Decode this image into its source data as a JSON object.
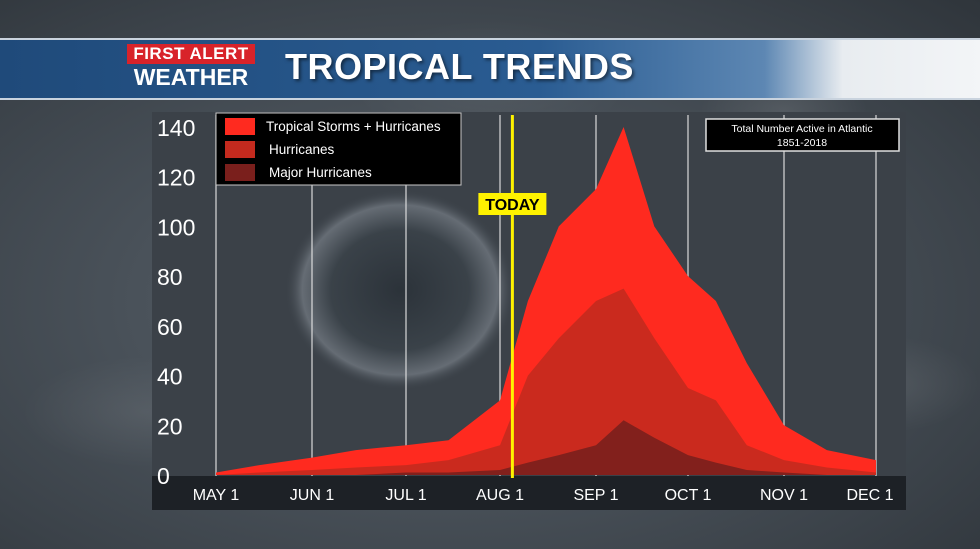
{
  "header": {
    "logo_line1": "FIRST ALERT",
    "logo_line2": "WEATHER",
    "title": "TROPICAL TRENDS"
  },
  "colors": {
    "tropical_storms": "#ff2a1f",
    "hurricanes": "#c42a1e",
    "major_hurricanes": "#7a1f1c",
    "today_line": "#fff200",
    "banner_blue": "#2a5c92",
    "logo_red": "#d8232a"
  },
  "chart_data": {
    "type": "area",
    "title": "Total Number Active in Atlantic",
    "subtitle": "1851-2018",
    "xlabel": "",
    "ylabel": "",
    "ylim": [
      0,
      140
    ],
    "yticks": [
      "140",
      "120",
      "100",
      "80",
      "60",
      "40",
      "20",
      "0"
    ],
    "xticks": [
      "MAY 1",
      "JUN 1",
      "JUL 1",
      "AUG 1",
      "SEP 1",
      "OCT 1",
      "NOV 1",
      "DEC 1"
    ],
    "grid": "vertical",
    "legend_position": "top-left",
    "annotation": "TODAY",
    "today_x": "Aug 5",
    "x": [
      "May 1",
      "May 15",
      "Jun 1",
      "Jun 15",
      "Jul 1",
      "Jul 15",
      "Aug 1",
      "Aug 10",
      "Aug 20",
      "Sep 1",
      "Sep 10",
      "Sep 20",
      "Oct 1",
      "Oct 10",
      "Oct 20",
      "Nov 1",
      "Nov 15",
      "Dec 1"
    ],
    "series": [
      {
        "name": "Tropical Storms + Hurricanes",
        "values": [
          1,
          4,
          7,
          10,
          12,
          14,
          30,
          70,
          100,
          115,
          140,
          100,
          80,
          70,
          45,
          20,
          10,
          6
        ]
      },
      {
        "name": "Hurricanes",
        "values": [
          0,
          1,
          2,
          3,
          4,
          6,
          12,
          40,
          55,
          70,
          75,
          55,
          35,
          30,
          12,
          6,
          3,
          1
        ]
      },
      {
        "name": "Major Hurricanes",
        "values": [
          0,
          0,
          0,
          0,
          1,
          1,
          2,
          5,
          8,
          12,
          22,
          15,
          8,
          5,
          2,
          1,
          0,
          0
        ]
      }
    ]
  }
}
